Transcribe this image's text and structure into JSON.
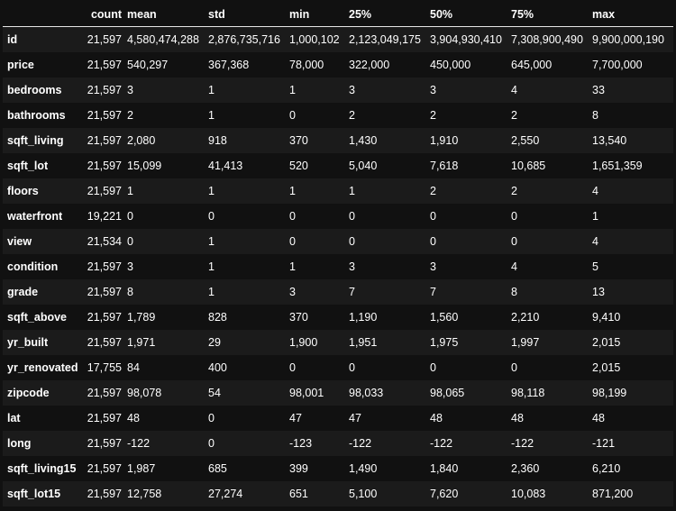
{
  "columns": [
    "count",
    "mean",
    "std",
    "min",
    "25%",
    "50%",
    "75%",
    "max"
  ],
  "rows": [
    {
      "name": "id",
      "values": [
        "21,597",
        "4,580,474,288",
        "2,876,735,716",
        "1,000,102",
        "2,123,049,175",
        "3,904,930,410",
        "7,308,900,490",
        "9,900,000,190"
      ]
    },
    {
      "name": "price",
      "values": [
        "21,597",
        "540,297",
        "367,368",
        "78,000",
        "322,000",
        "450,000",
        "645,000",
        "7,700,000"
      ]
    },
    {
      "name": "bedrooms",
      "values": [
        "21,597",
        "3",
        "1",
        "1",
        "3",
        "3",
        "4",
        "33"
      ]
    },
    {
      "name": "bathrooms",
      "values": [
        "21,597",
        "2",
        "1",
        "0",
        "2",
        "2",
        "2",
        "8"
      ]
    },
    {
      "name": "sqft_living",
      "values": [
        "21,597",
        "2,080",
        "918",
        "370",
        "1,430",
        "1,910",
        "2,550",
        "13,540"
      ]
    },
    {
      "name": "sqft_lot",
      "values": [
        "21,597",
        "15,099",
        "41,413",
        "520",
        "5,040",
        "7,618",
        "10,685",
        "1,651,359"
      ]
    },
    {
      "name": "floors",
      "values": [
        "21,597",
        "1",
        "1",
        "1",
        "1",
        "2",
        "2",
        "4"
      ]
    },
    {
      "name": "waterfront",
      "values": [
        "19,221",
        "0",
        "0",
        "0",
        "0",
        "0",
        "0",
        "1"
      ]
    },
    {
      "name": "view",
      "values": [
        "21,534",
        "0",
        "1",
        "0",
        "0",
        "0",
        "0",
        "4"
      ]
    },
    {
      "name": "condition",
      "values": [
        "21,597",
        "3",
        "1",
        "1",
        "3",
        "3",
        "4",
        "5"
      ]
    },
    {
      "name": "grade",
      "values": [
        "21,597",
        "8",
        "1",
        "3",
        "7",
        "7",
        "8",
        "13"
      ]
    },
    {
      "name": "sqft_above",
      "values": [
        "21,597",
        "1,789",
        "828",
        "370",
        "1,190",
        "1,560",
        "2,210",
        "9,410"
      ]
    },
    {
      "name": "yr_built",
      "values": [
        "21,597",
        "1,971",
        "29",
        "1,900",
        "1,951",
        "1,975",
        "1,997",
        "2,015"
      ]
    },
    {
      "name": "yr_renovated",
      "values": [
        "17,755",
        "84",
        "400",
        "0",
        "0",
        "0",
        "0",
        "2,015"
      ]
    },
    {
      "name": "zipcode",
      "values": [
        "21,597",
        "98,078",
        "54",
        "98,001",
        "98,033",
        "98,065",
        "98,118",
        "98,199"
      ]
    },
    {
      "name": "lat",
      "values": [
        "21,597",
        "48",
        "0",
        "47",
        "47",
        "48",
        "48",
        "48"
      ]
    },
    {
      "name": "long",
      "values": [
        "21,597",
        "-122",
        "0",
        "-123",
        "-122",
        "-122",
        "-122",
        "-121"
      ]
    },
    {
      "name": "sqft_living15",
      "values": [
        "21,597",
        "1,987",
        "685",
        "399",
        "1,490",
        "1,840",
        "2,360",
        "6,210"
      ]
    },
    {
      "name": "sqft_lot15",
      "values": [
        "21,597",
        "12,758",
        "27,274",
        "651",
        "5,100",
        "7,620",
        "10,083",
        "871,200"
      ]
    }
  ]
}
